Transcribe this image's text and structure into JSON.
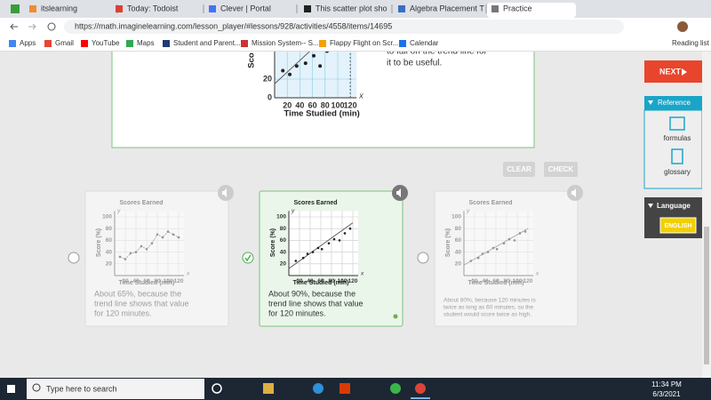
{
  "browser": {
    "tabs": [
      "itslearning",
      "Today: Todoist",
      "Clever | Portal",
      "This scatter plot sho",
      "Algebra Placement T",
      "Practice"
    ],
    "address": "https://math.imaginelearning.com/lesson_player/#lessons/928/activities/4558/items/14695",
    "bookmarks": [
      "Apps",
      "Gmail",
      "YouTube",
      "Maps",
      "Student and Parent...",
      "Mission System-- S...",
      "Flappy Flight on Scr...",
      "Calendar"
    ],
    "reading_list": "Reading list"
  },
  "lesson": {
    "prompt_fragment": [
      "to fall on the trend line for",
      "it to be useful."
    ],
    "top_chart": {
      "type": "scatter",
      "y_label": "Sco",
      "x_label": "Time Studied (min)",
      "x_axis": "x",
      "xlim": [
        0,
        130
      ],
      "ylim": [
        0,
        100
      ],
      "xticks": [
        20,
        40,
        60,
        80,
        100,
        120
      ],
      "yticks": [
        0,
        20
      ],
      "x": [
        13,
        24,
        35,
        49,
        62,
        72,
        83
      ],
      "y": [
        29,
        25,
        34,
        37,
        45,
        34,
        50
      ],
      "trend": {
        "x": [
          0,
          120
        ],
        "y": [
          15,
          90
        ]
      }
    },
    "buttons": {
      "clear": "CLEAR",
      "check": "CHECK"
    },
    "cards": [
      {
        "chart": {
          "type": "line",
          "title": "Scores Earned",
          "y_label": "Score (%)",
          "x_label": "Time Studied (min)",
          "x_axis": "x",
          "y_axis": "y",
          "xlim": [
            0,
            130
          ],
          "ylim": [
            0,
            110
          ],
          "xticks": [
            20,
            40,
            60,
            80,
            100,
            120
          ],
          "yticks": [
            20,
            40,
            60,
            80,
            100
          ],
          "x": [
            10,
            20,
            30,
            40,
            50,
            60,
            70,
            80,
            90,
            100,
            110,
            120
          ],
          "y": [
            32,
            28,
            38,
            40,
            50,
            45,
            55,
            70,
            65,
            75,
            70,
            65
          ]
        },
        "text": [
          "About 65%, because the",
          "trend line shows that value",
          "for 120 minutes."
        ],
        "selected": false
      },
      {
        "chart": {
          "type": "scatter",
          "title": "Scores Earned",
          "y_label": "Score (%)",
          "x_label": "Time Studied (min)",
          "x_axis": "x",
          "y_axis": "y",
          "xlim": [
            0,
            130
          ],
          "ylim": [
            0,
            110
          ],
          "xticks": [
            20,
            40,
            60,
            80,
            100,
            120
          ],
          "yticks": [
            20,
            40,
            60,
            80,
            100
          ],
          "x": [
            13,
            27,
            35,
            45,
            55,
            62,
            75,
            85,
            95,
            105,
            115
          ],
          "y": [
            25,
            30,
            37,
            40,
            47,
            45,
            55,
            62,
            60,
            72,
            80
          ],
          "trend": {
            "x": [
              0,
              120
            ],
            "y": [
              12,
              90
            ]
          }
        },
        "text": [
          "About 90%, because the",
          "trend line shows that value",
          "for 120 minutes."
        ],
        "selected": true
      },
      {
        "chart": {
          "type": "scatter",
          "title": "Scores Earned",
          "y_label": "Score (%)",
          "x_label": "Time Studied (min)",
          "x_axis": "x",
          "y_axis": "y",
          "xlim": [
            0,
            130
          ],
          "ylim": [
            0,
            110
          ],
          "xticks": [
            20,
            40,
            60,
            80,
            100,
            120
          ],
          "yticks": [
            20,
            40,
            60,
            80,
            100
          ],
          "x": [
            13,
            27,
            35,
            45,
            55,
            62,
            75,
            85,
            95,
            105,
            115
          ],
          "y": [
            25,
            30,
            37,
            40,
            47,
            45,
            55,
            62,
            60,
            72,
            75
          ],
          "trend": {
            "x": [
              0,
              120
            ],
            "y": [
              18,
              80
            ]
          }
        },
        "text": [
          "About 80%, because 120 minutes is",
          "twice as long as 60 minutes, so the",
          "student would score twice as high."
        ],
        "selected": false
      }
    ]
  },
  "sidebar": {
    "next": "NEXT",
    "reference": "Reference",
    "formulas": "formulas",
    "glossary": "glossary",
    "language": "Language",
    "english": "ENGLISH"
  },
  "taskbar": {
    "search": "Type here to search",
    "time": "11:34 PM",
    "date": "6/3/2021"
  }
}
